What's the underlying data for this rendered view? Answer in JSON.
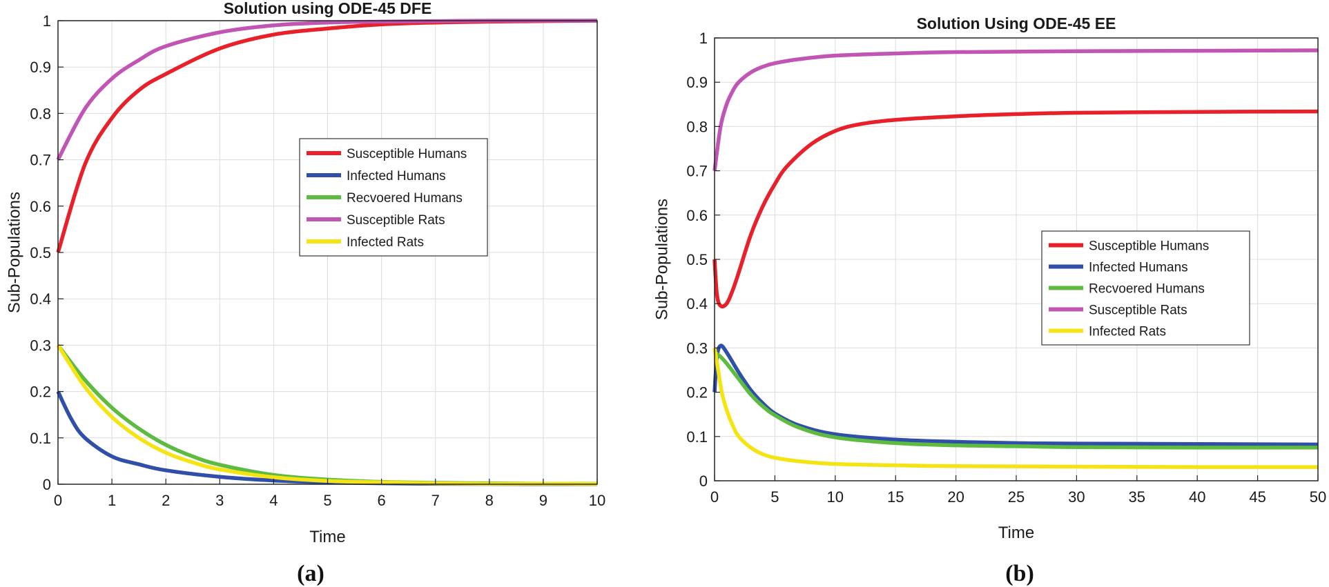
{
  "figure": {
    "panel_labels": [
      "(a)",
      "(b)"
    ]
  },
  "chart_data": [
    {
      "type": "line",
      "title": "Solution using ODE-45 DFE",
      "xlabel": "Time",
      "ylabel": "Sub-Populations",
      "xlim": [
        0,
        10
      ],
      "ylim": [
        0,
        1
      ],
      "xticks": [
        0,
        1,
        2,
        3,
        4,
        5,
        6,
        7,
        8,
        9,
        10
      ],
      "yticks": [
        0,
        0.1,
        0.2,
        0.3,
        0.4,
        0.5,
        0.6,
        0.7,
        0.8,
        0.9,
        1
      ],
      "grid": true,
      "legend_position": "center-right",
      "series": [
        {
          "name": "Susceptible Humans",
          "color": "#e8202a",
          "x": [
            0,
            0.5,
            1,
            1.5,
            2,
            3,
            4,
            5,
            6,
            7,
            8,
            9,
            10
          ],
          "y": [
            0.5,
            0.69,
            0.79,
            0.85,
            0.885,
            0.94,
            0.97,
            0.983,
            0.992,
            0.996,
            0.998,
            0.999,
            1.0
          ]
        },
        {
          "name": "Infected Humans",
          "color": "#2f4fa8",
          "x": [
            0,
            0.25,
            0.5,
            1,
            1.5,
            2,
            3,
            4,
            5,
            6,
            7,
            8,
            9,
            10
          ],
          "y": [
            0.2,
            0.14,
            0.1,
            0.06,
            0.043,
            0.03,
            0.016,
            0.008,
            0.004,
            0.002,
            0.001,
            0.0005,
            0.0002,
            0.0001
          ]
        },
        {
          "name": "Recvoered Humans",
          "color": "#5dbb3f",
          "x": [
            0,
            0.5,
            1,
            1.5,
            2,
            2.5,
            3,
            4,
            5,
            6,
            7,
            8,
            9,
            10
          ],
          "y": [
            0.3,
            0.225,
            0.165,
            0.12,
            0.085,
            0.06,
            0.042,
            0.02,
            0.01,
            0.005,
            0.003,
            0.002,
            0.001,
            0.001
          ]
        },
        {
          "name": "Susceptible Rats",
          "color": "#c055b4",
          "x": [
            0,
            0.5,
            1,
            1.5,
            2,
            3,
            4,
            5,
            6,
            7,
            8,
            9,
            10
          ],
          "y": [
            0.7,
            0.81,
            0.875,
            0.915,
            0.945,
            0.975,
            0.99,
            0.996,
            0.998,
            0.999,
            1.0,
            1.0,
            1.0
          ]
        },
        {
          "name": "Infected Rats",
          "color": "#f5e414",
          "x": [
            0,
            0.5,
            1,
            1.5,
            2,
            2.5,
            3,
            4,
            5,
            6,
            7,
            8,
            9,
            10
          ],
          "y": [
            0.3,
            0.21,
            0.145,
            0.1,
            0.068,
            0.047,
            0.032,
            0.015,
            0.007,
            0.004,
            0.002,
            0.001,
            0.001,
            0.0005
          ]
        }
      ]
    },
    {
      "type": "line",
      "title": "Solution Using ODE-45 EE",
      "xlabel": "Time",
      "ylabel": "Sub-Populations",
      "xlim": [
        0,
        50
      ],
      "ylim": [
        0,
        1
      ],
      "xticks": [
        0,
        5,
        10,
        15,
        20,
        25,
        30,
        35,
        40,
        45,
        50
      ],
      "yticks": [
        0,
        0.1,
        0.2,
        0.3,
        0.4,
        0.5,
        0.6,
        0.7,
        0.8,
        0.9,
        1
      ],
      "grid": true,
      "legend_position": "center-right",
      "series": [
        {
          "name": "Susceptible Humans",
          "color": "#e8202a",
          "x": [
            0,
            0.2,
            0.5,
            1,
            1.5,
            2,
            3,
            4,
            5,
            6,
            8,
            10,
            12,
            15,
            20,
            25,
            30,
            40,
            50
          ],
          "y": [
            0.5,
            0.42,
            0.395,
            0.4,
            0.43,
            0.47,
            0.555,
            0.62,
            0.67,
            0.71,
            0.76,
            0.79,
            0.805,
            0.815,
            0.823,
            0.828,
            0.831,
            0.833,
            0.834
          ]
        },
        {
          "name": "Infected Humans",
          "color": "#2f4fa8",
          "x": [
            0,
            0.2,
            0.5,
            1,
            2,
            3,
            4,
            5,
            7,
            10,
            15,
            20,
            25,
            30,
            40,
            50
          ],
          "y": [
            0.2,
            0.28,
            0.305,
            0.29,
            0.245,
            0.205,
            0.175,
            0.152,
            0.125,
            0.105,
            0.093,
            0.088,
            0.085,
            0.084,
            0.083,
            0.082
          ]
        },
        {
          "name": "Recvoered Humans",
          "color": "#5dbb3f",
          "x": [
            0,
            0.5,
            1,
            2,
            3,
            4,
            5,
            7,
            10,
            15,
            20,
            25,
            30,
            40,
            50
          ],
          "y": [
            0.29,
            0.28,
            0.265,
            0.23,
            0.195,
            0.168,
            0.148,
            0.12,
            0.098,
            0.085,
            0.08,
            0.078,
            0.076,
            0.075,
            0.075
          ]
        },
        {
          "name": "Susceptible Rats",
          "color": "#c055b4",
          "x": [
            0,
            0.5,
            1,
            1.5,
            2,
            3,
            4,
            5,
            7,
            10,
            15,
            20,
            30,
            40,
            50
          ],
          "y": [
            0.7,
            0.8,
            0.85,
            0.88,
            0.9,
            0.922,
            0.935,
            0.943,
            0.952,
            0.96,
            0.965,
            0.968,
            0.97,
            0.971,
            0.972
          ]
        },
        {
          "name": "Infected Rats",
          "color": "#f5e414",
          "x": [
            0,
            0.3,
            0.6,
            1,
            1.5,
            2,
            3,
            4,
            5,
            7,
            10,
            15,
            20,
            30,
            40,
            50
          ],
          "y": [
            0.3,
            0.25,
            0.2,
            0.16,
            0.125,
            0.1,
            0.075,
            0.06,
            0.052,
            0.044,
            0.038,
            0.035,
            0.033,
            0.032,
            0.031,
            0.031
          ]
        }
      ]
    }
  ]
}
